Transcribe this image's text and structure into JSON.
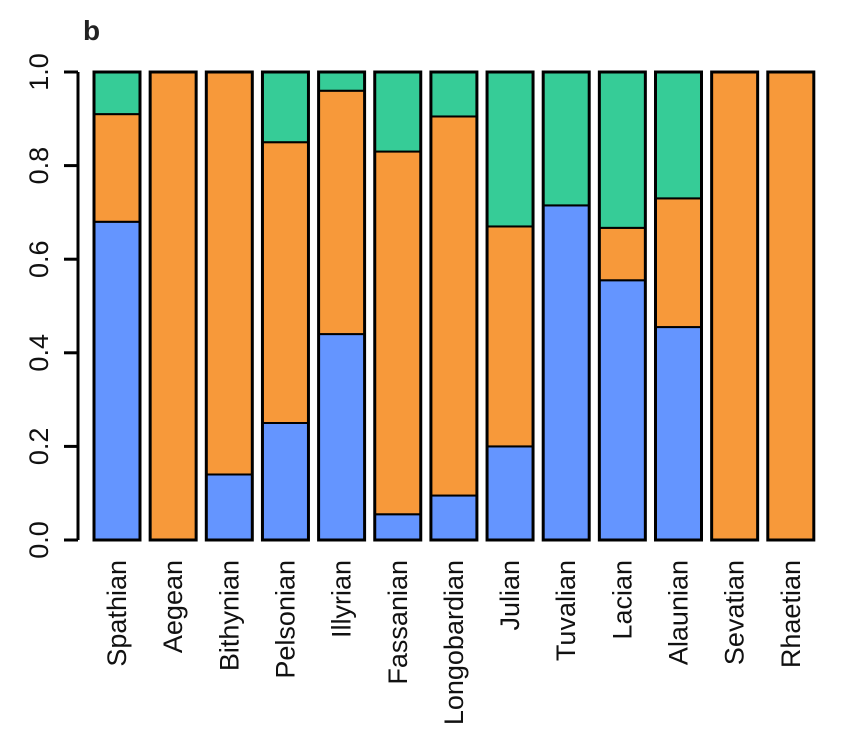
{
  "chart_data": {
    "type": "bar",
    "stacked": true,
    "normalized": true,
    "panel_label": "b",
    "title": "",
    "xlabel": "",
    "ylabel": "",
    "ylim": [
      0,
      1
    ],
    "yticks": [
      "0.0",
      "0.2",
      "0.4",
      "0.6",
      "0.8",
      "1.0"
    ],
    "grid": false,
    "legend": "none",
    "categories": [
      "Spathian",
      "Aegean",
      "Bithynian",
      "Pelsonian",
      "Illyrian",
      "Fassanian",
      "Longobardian",
      "Julian",
      "Tuvalian",
      "Lacian",
      "Alaunian",
      "Sevatian",
      "Rhaetian"
    ],
    "series": [
      {
        "color": "#6495FF",
        "values": [
          0.68,
          0.0,
          0.14,
          0.25,
          0.44,
          0.055,
          0.095,
          0.2,
          0.715,
          0.555,
          0.455,
          0.0,
          0.0
        ]
      },
      {
        "color": "#F7993A",
        "values": [
          0.23,
          1.0,
          0.86,
          0.6,
          0.52,
          0.775,
          0.81,
          0.47,
          0.0,
          0.112,
          0.275,
          1.0,
          1.0
        ]
      },
      {
        "color": "#36CC97",
        "values": [
          0.09,
          0.0,
          0.0,
          0.15,
          0.04,
          0.17,
          0.095,
          0.33,
          0.285,
          0.333,
          0.27,
          0.0,
          0.0
        ]
      }
    ]
  }
}
